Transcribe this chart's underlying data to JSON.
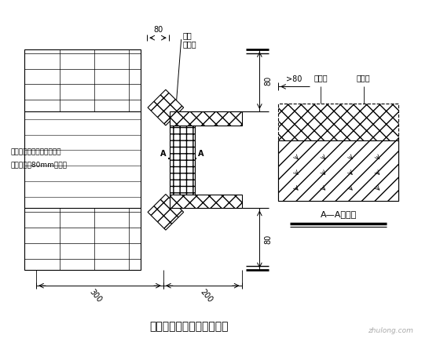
{
  "title": "门窗洞口附加网络布示意图",
  "background_color": "#ffffff",
  "label_80_top": "80",
  "label_80_right_top": "80",
  "label_80_right_bottom": "80",
  "label_80_section": ">80",
  "label_300": "300",
  "label_200": "200",
  "label_fujia": "附加",
  "label_wanggebu": "网格布",
  "label_wanggebu2": "网格布",
  "label_jisub": "挤塑板",
  "label_AA": "A—A剖面图",
  "label_left1": "与墙体接触一面用粘结砂浆",
  "label_left2": "预粘不小于80mm网格布",
  "watermark": "zhulong.com"
}
